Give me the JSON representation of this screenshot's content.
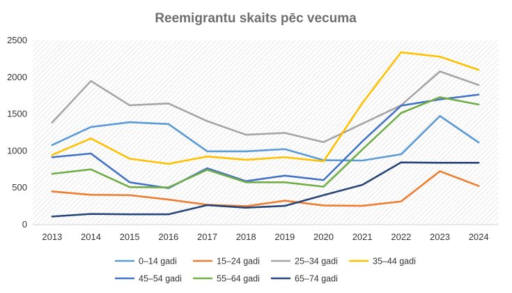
{
  "chart_data": {
    "type": "line",
    "title": "Reemigrantu skaits pēc vecuma",
    "xlabel": "",
    "ylabel": "",
    "x": [
      "2013",
      "2014",
      "2015",
      "2016",
      "2017",
      "2018",
      "2019",
      "2020",
      "2021",
      "2022",
      "2023",
      "2024"
    ],
    "ylim": [
      0,
      2500
    ],
    "yticks": [
      "0",
      "500",
      "1000",
      "1500",
      "2000",
      "2500"
    ],
    "grid": "hatched plot area",
    "legend_position": "bottom",
    "series": [
      {
        "name": "0–14 gadi",
        "color": "#5b9bd5",
        "values": [
          1080,
          1325,
          1390,
          1365,
          995,
          995,
          1025,
          875,
          870,
          955,
          1475,
          1115
        ]
      },
      {
        "name": "15–24 gadi",
        "color": "#ed7d31",
        "values": [
          450,
          405,
          400,
          340,
          270,
          250,
          325,
          260,
          255,
          315,
          725,
          525
        ]
      },
      {
        "name": "25–34 gadi",
        "color": "#a5a5a5",
        "values": [
          1385,
          1950,
          1620,
          1645,
          1405,
          1220,
          1245,
          1120,
          1370,
          1620,
          2080,
          1895
        ]
      },
      {
        "name": "35–44 gadi",
        "color": "#ffc000",
        "values": [
          945,
          1170,
          895,
          825,
          925,
          880,
          915,
          860,
          1650,
          2340,
          2280,
          2100
        ]
      },
      {
        "name": "45–54 gadi",
        "color": "#4472c4",
        "values": [
          915,
          965,
          575,
          495,
          765,
          590,
          665,
          605,
          1130,
          1615,
          1700,
          1765
        ]
      },
      {
        "name": "55–64 gadi",
        "color": "#70ad47",
        "values": [
          690,
          750,
          510,
          505,
          745,
          575,
          575,
          515,
          1020,
          1515,
          1730,
          1630
        ]
      },
      {
        "name": "65–74 gadi",
        "color": "#264478",
        "values": [
          110,
          145,
          140,
          140,
          265,
          230,
          255,
          400,
          540,
          845,
          840,
          840
        ]
      }
    ]
  }
}
